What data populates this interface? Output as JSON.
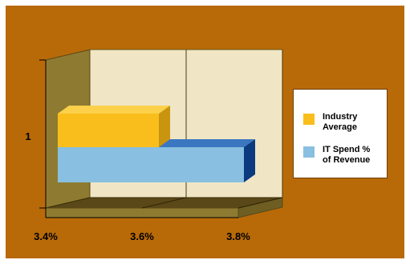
{
  "colors": {
    "frame_background": "#b96a08",
    "plot_wall": "#f0e6c5",
    "side_wall": "#8e7b31",
    "floor": "#5a4818",
    "floor_front": "#8e7b31",
    "industry_average": "#f9be1c",
    "industry_average_top": "#fcd04a",
    "industry_average_side": "#c99410",
    "it_spend": "#89bfe0",
    "it_spend_top": "#3a77c0",
    "it_spend_side": "#0b3a80"
  },
  "chart_data": {
    "type": "bar",
    "orientation": "horizontal",
    "style": "3d",
    "categories": [
      "1"
    ],
    "series": [
      {
        "name": "Industry Average",
        "values": [
          3.62
        ],
        "color": "#f9be1c"
      },
      {
        "name": "IT Spend % of Revenue",
        "values": [
          3.8
        ],
        "color": "#89bfe0"
      }
    ],
    "xlim": [
      3.4,
      3.8
    ],
    "x_ticks": [
      "3.4%",
      "3.6%",
      "3.8%"
    ],
    "x_tick_values": [
      3.4,
      3.6,
      3.8
    ],
    "grid": true,
    "legend_position": "right"
  },
  "legend": {
    "items": [
      {
        "line1": "Industry",
        "line2": "Average",
        "color": "#f9be1c"
      },
      {
        "line1": "IT Spend %",
        "line2": "of Revenue",
        "color": "#89bfe0"
      }
    ]
  }
}
